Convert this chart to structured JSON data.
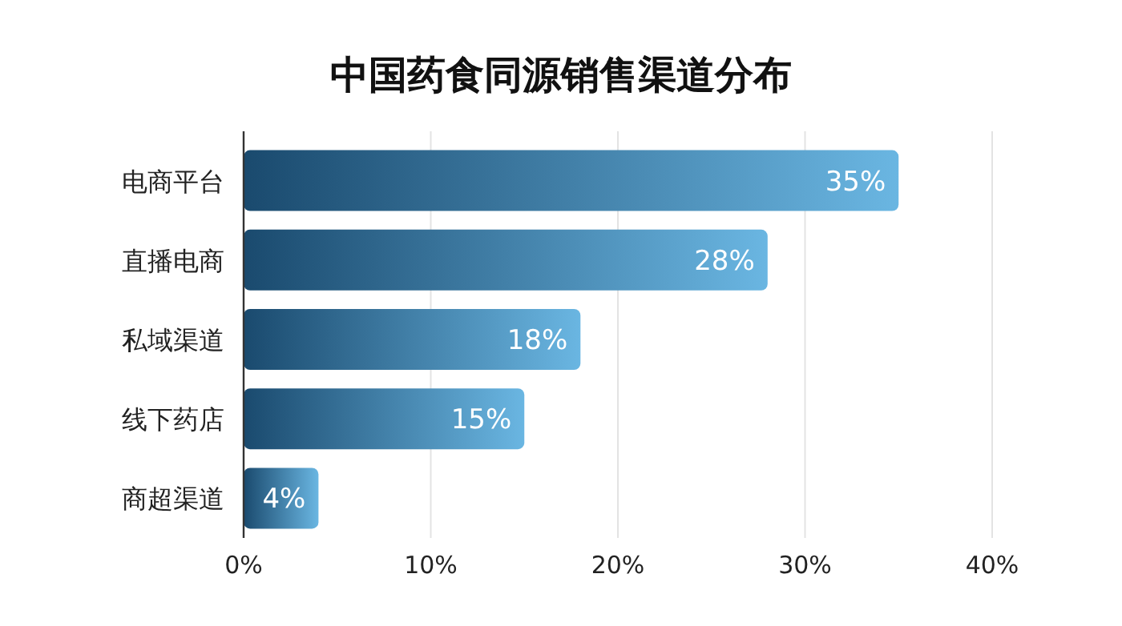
{
  "chart_data": {
    "type": "bar",
    "orientation": "horizontal",
    "title": "中国药食同源销售渠道分布",
    "categories": [
      "电商平台",
      "直播电商",
      "私域渠道",
      "线下药店",
      "商超渠道"
    ],
    "values": [
      35,
      28,
      18,
      15,
      4
    ],
    "value_labels": [
      "35%",
      "28%",
      "18%",
      "15%",
      "4%"
    ],
    "color": "#1a4a6e",
    "xlim": [
      0,
      40
    ],
    "xticks": [
      {
        "value": 0,
        "label": "0%"
      },
      {
        "value": 10,
        "label": "10%"
      },
      {
        "value": 20,
        "label": "20%"
      },
      {
        "value": 30,
        "label": "30%"
      },
      {
        "value": 40,
        "label": "40%"
      }
    ],
    "grid": "x"
  }
}
